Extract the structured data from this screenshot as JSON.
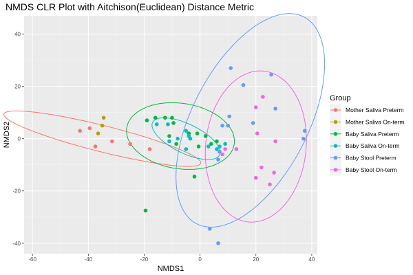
{
  "chart_data": {
    "type": "scatter",
    "title": "NMDS CLR Plot with Aitchison(Euclidean) Distance Metric",
    "xlabel": "NMDS1",
    "ylabel": "NMDS2",
    "xlim": [
      -63,
      42
    ],
    "ylim": [
      -44,
      47
    ],
    "x_ticks": [
      -60,
      -40,
      -20,
      0,
      20,
      40
    ],
    "y_ticks": [
      -40,
      -20,
      0,
      20,
      40
    ],
    "x_tick_labels": [
      "-60",
      "-40",
      "-20",
      "0",
      "20",
      "40"
    ],
    "y_tick_labels": [
      "-40",
      "-20",
      "0",
      "20",
      "40"
    ],
    "grid": true,
    "legend_position": "right",
    "legend_title": "Group",
    "series": [
      {
        "name": "Mother Saliva Preterm",
        "color": "#F8766D",
        "points": [
          [
            -43,
            3
          ],
          [
            -39.5,
            4
          ],
          [
            -37.5,
            -3
          ],
          [
            -31.5,
            -1
          ],
          [
            -25,
            -2
          ],
          [
            -18,
            -4
          ]
        ],
        "ellipse": {
          "center": [
            -35,
            0
          ],
          "semi_major": 36.5,
          "semi_minor": 5,
          "angle_deg": -15
        }
      },
      {
        "name": "Mother Saliva On-term",
        "color": "#B79F00",
        "points": [
          [
            -34.5,
            8
          ],
          [
            -35,
            5
          ],
          [
            -36.5,
            2
          ]
        ],
        "ellipse": null
      },
      {
        "name": "Baby Saliva Preterm",
        "color": "#00BA38",
        "points": [
          [
            -19,
            7
          ],
          [
            -16,
            8
          ],
          [
            -12.5,
            8
          ],
          [
            -10,
            8
          ],
          [
            -9.5,
            6
          ],
          [
            -11,
            1
          ],
          [
            -8.5,
            -2
          ],
          [
            -4,
            2
          ],
          [
            -1,
            2
          ],
          [
            2,
            1
          ],
          [
            4,
            -2
          ],
          [
            6,
            -1
          ],
          [
            -0.5,
            -3
          ],
          [
            -2,
            -14.5
          ],
          [
            -19.5,
            -27.5
          ]
        ],
        "ellipse": {
          "center": [
            -7,
            1
          ],
          "semi_major": 19.5,
          "semi_minor": 12.5,
          "angle_deg": -10
        }
      },
      {
        "name": "Baby Saliva On-term",
        "color": "#00BFC4",
        "points": [
          [
            -15.5,
            5.5
          ],
          [
            -11.5,
            5.5
          ],
          [
            -8,
            0
          ],
          [
            -5,
            3
          ],
          [
            -4,
            1
          ],
          [
            -3.5,
            0
          ],
          [
            -11,
            -1
          ],
          [
            -5,
            -4
          ],
          [
            3,
            -3
          ],
          [
            6,
            -4
          ],
          [
            7,
            -3
          ],
          [
            9,
            -2
          ]
        ],
        "ellipse": {
          "center": [
            -5,
            0
          ],
          "semi_major": 13.5,
          "semi_minor": 5.5,
          "angle_deg": -28
        }
      },
      {
        "name": "Baby Stool Preterm",
        "color": "#619CFF",
        "points": [
          [
            11,
            27
          ],
          [
            15.5,
            20.5
          ],
          [
            25.5,
            24.5
          ],
          [
            10.5,
            8.5
          ],
          [
            19,
            6
          ],
          [
            27,
            11.5
          ],
          [
            37.5,
            3
          ],
          [
            37,
            0
          ],
          [
            8,
            5
          ],
          [
            10,
            5
          ],
          [
            7,
            -5
          ],
          [
            6.5,
            -8
          ],
          [
            3.5,
            -34.5
          ],
          [
            6.5,
            -40
          ]
        ],
        "ellipse": {
          "center": [
            18,
            7
          ],
          "semi_major": 44,
          "semi_minor": 21,
          "angle_deg": 65
        }
      },
      {
        "name": "Baby Stool On-term",
        "color": "#F564E3",
        "points": [
          [
            22.5,
            16
          ],
          [
            20,
            12
          ],
          [
            20.5,
            2
          ],
          [
            27,
            -1
          ],
          [
            8,
            -6
          ],
          [
            9,
            -4
          ],
          [
            13,
            -4
          ],
          [
            22,
            -11
          ],
          [
            26.5,
            -13
          ],
          [
            20,
            -15
          ],
          [
            25,
            -17.5
          ]
        ],
        "ellipse": {
          "center": [
            20,
            -3
          ],
          "semi_major": 29,
          "semi_minor": 18,
          "angle_deg": 85
        }
      }
    ]
  }
}
